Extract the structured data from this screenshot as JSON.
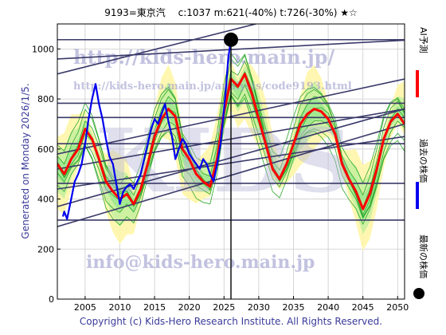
{
  "chart_data": {
    "type": "line",
    "title": "9193=東京汽　 c:1037  m:621(-40%)  t:726(-30%)  ★☆",
    "xlim": [
      2001,
      2051
    ],
    "ylim": [
      0,
      1100
    ],
    "x_ticks": [
      2005,
      2010,
      2015,
      2020,
      2025,
      2030,
      2035,
      2040,
      2045,
      2050
    ],
    "y_ticks": [
      0,
      200,
      400,
      600,
      800,
      1000
    ],
    "current": {
      "x": 2026.0,
      "y": 1037
    },
    "hlines": [
      1037,
      783,
      726,
      621,
      463,
      316
    ],
    "trend_lines": [
      {
        "x1": 2001,
        "y1": 900,
        "x2": 2051,
        "y2": 1250
      },
      {
        "x1": 2001,
        "y1": 960,
        "x2": 2051,
        "y2": 1035
      },
      {
        "x1": 2001,
        "y1": 580,
        "x2": 2051,
        "y2": 880
      },
      {
        "x1": 2001,
        "y1": 520,
        "x2": 2051,
        "y2": 760
      },
      {
        "x1": 2001,
        "y1": 440,
        "x2": 2051,
        "y2": 650
      },
      {
        "x1": 2001,
        "y1": 370,
        "x2": 2051,
        "y2": 760
      },
      {
        "x1": 2001,
        "y1": 290,
        "x2": 2051,
        "y2": 700
      }
    ],
    "series": [
      {
        "name": "AI予測",
        "color": "#ff0000",
        "x": [
          2001,
          2002,
          2003,
          2004,
          2005,
          2006,
          2007,
          2008,
          2009,
          2010,
          2011,
          2012,
          2013,
          2014,
          2015,
          2016,
          2017,
          2018,
          2019,
          2020,
          2021,
          2022,
          2023,
          2024,
          2025,
          2026,
          2027,
          2028,
          2029,
          2030,
          2031,
          2032,
          2033,
          2034,
          2035,
          2036,
          2037,
          2038,
          2039,
          2040,
          2041,
          2042,
          2043,
          2044,
          2045,
          2046,
          2047,
          2048,
          2049,
          2050,
          2051
        ],
        "y": [
          540,
          500,
          560,
          600,
          680,
          640,
          560,
          470,
          430,
          400,
          420,
          380,
          440,
          540,
          650,
          720,
          760,
          730,
          600,
          560,
          500,
          470,
          450,
          560,
          750,
          880,
          850,
          900,
          820,
          720,
          620,
          520,
          480,
          540,
          620,
          700,
          740,
          760,
          750,
          720,
          660,
          540,
          480,
          430,
          360,
          420,
          520,
          640,
          710,
          740,
          700
        ]
      },
      {
        "name": "過去の株価",
        "color": "#0000ee",
        "x": [
          2001.8,
          2002,
          2002.4,
          2003,
          2003.5,
          2004,
          2004.5,
          2005,
          2005.5,
          2006,
          2006.5,
          2007,
          2007.5,
          2008,
          2008.5,
          2009,
          2009.5,
          2010,
          2010.5,
          2011,
          2011.5,
          2012,
          2012.5,
          2013,
          2013.5,
          2014,
          2014.5,
          2015,
          2015.5,
          2016,
          2016.5,
          2017,
          2017.5,
          2018,
          2018.5,
          2019,
          2019.5,
          2020,
          2020.5,
          2021,
          2021.5,
          2022,
          2022.5,
          2023,
          2023.5,
          2024,
          2024.5,
          2025,
          2025.3,
          2025.6,
          2026
        ],
        "y": [
          330,
          350,
          320,
          400,
          470,
          500,
          540,
          620,
          720,
          800,
          860,
          780,
          720,
          640,
          570,
          540,
          460,
          380,
          430,
          450,
          460,
          440,
          470,
          500,
          560,
          620,
          680,
          720,
          700,
          740,
          780,
          710,
          650,
          560,
          600,
          640,
          620,
          580,
          560,
          540,
          520,
          560,
          540,
          500,
          470,
          540,
          620,
          760,
          850,
          960,
          1037
        ]
      }
    ],
    "labels": {
      "generated": "Generated on Monday 2026/1/5.",
      "copyright": "Copyright (c) Kids-Hero Research Institute. All Rights Reserved.",
      "watermark_url": "http://kids-hero.main.jp/",
      "watermark_url2": "http://kids-hero.main.jp/analysis/code9193.html",
      "watermark_mail": "info@kids-hero.main.jp",
      "watermark_big": "KIDS"
    },
    "legend": [
      {
        "text": "AI予測",
        "color": "#ff0000"
      },
      {
        "text": "過去の株価",
        "color": "#0000ee"
      },
      {
        "text": "最新の株価",
        "color": "#000000"
      }
    ],
    "grid": true
  }
}
